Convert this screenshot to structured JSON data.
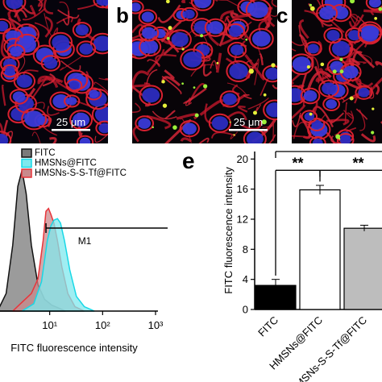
{
  "figure": {
    "panels_top": [
      {
        "id": "a",
        "letter": "",
        "scalebar": "25 μm"
      },
      {
        "id": "b",
        "letter": "b",
        "scalebar": "25 μm"
      },
      {
        "id": "c",
        "letter": "c",
        "scalebar": ""
      }
    ],
    "panel_d_letter": "",
    "panel_e_letter": "e"
  },
  "chart_data": [
    {
      "type": "area",
      "panel": "d",
      "xlabel": "FITC fluorescence intensity",
      "ylabel": "",
      "xscale": "log",
      "xlim": [
        1,
        1000
      ],
      "xticks": [
        {
          "v": 10,
          "label": "10¹"
        },
        {
          "v": 100,
          "label": "10²"
        },
        {
          "v": 1000,
          "label": "10³"
        }
      ],
      "legend_placement": "top-left",
      "gate_label": "M1",
      "gate_range": [
        8.5,
        1000
      ],
      "series": [
        {
          "name": "FITC",
          "color": "#111111",
          "fill": "#7a7a7a",
          "x": [
            1.1,
            1.5,
            2.0,
            2.5,
            3.0,
            3.6,
            4.5,
            6,
            8,
            11,
            15,
            20
          ],
          "y": [
            2,
            12,
            45,
            85,
            96,
            80,
            45,
            18,
            8,
            4,
            2,
            0
          ]
        },
        {
          "name": "HMSNs@FITC",
          "color": "#17d8e6",
          "fill": "#7fe8ee",
          "x": [
            3,
            5,
            7,
            9,
            10.5,
            12,
            14,
            16,
            19,
            24,
            32,
            45,
            70
          ],
          "y": [
            0,
            5,
            20,
            48,
            58,
            62,
            63,
            60,
            48,
            28,
            10,
            3,
            0
          ]
        },
        {
          "name": "HMSNs-S-S-Tf@FITC",
          "color": "#e8343a",
          "fill": "#c98a8c",
          "x": [
            2,
            3,
            4.5,
            6,
            7.5,
            8.5,
            9.5,
            10.5,
            12,
            14,
            17,
            22,
            30,
            45
          ],
          "y": [
            0,
            6,
            12,
            22,
            48,
            68,
            70,
            66,
            60,
            48,
            30,
            12,
            3,
            0
          ]
        }
      ]
    },
    {
      "type": "bar",
      "panel": "e",
      "title": "",
      "xlabel": "",
      "ylabel": "FITC fluorescence intensity",
      "ylim": [
        0,
        21
      ],
      "yticks": [
        0,
        4,
        8,
        12,
        16,
        20
      ],
      "categories": [
        "FITC",
        "HMSNs@FITC",
        "HMSNs-S-S-Tf@FITC"
      ],
      "values": [
        3.2,
        15.9,
        10.8
      ],
      "errors": [
        0.8,
        0.6,
        0.4
      ],
      "bar_colors": [
        "#000000",
        "#ffffff",
        "#bdbdbd"
      ],
      "significance": [
        {
          "from": 0,
          "to": 1,
          "label": "**"
        },
        {
          "from": 1,
          "to": 2,
          "label": "**"
        },
        {
          "from": 0,
          "to": 2,
          "label": "**"
        }
      ]
    }
  ]
}
